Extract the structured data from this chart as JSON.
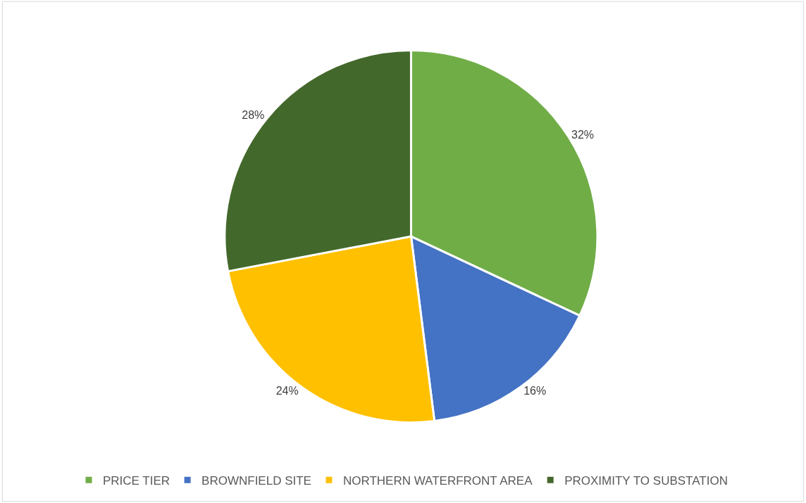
{
  "chart_data": {
    "type": "pie",
    "categories": [
      "PRICE TIER",
      "BROWNFIELD SITE",
      "NORTHERN WATERFRONT AREA",
      "PROXIMITY TO SUBSTATION"
    ],
    "values": [
      32,
      16,
      24,
      28
    ],
    "colors": [
      "#70ad47",
      "#4472c4",
      "#ffc000",
      "#43682b"
    ],
    "value_labels": [
      "32%",
      "16%",
      "24%",
      "28%"
    ],
    "legend": "bottom"
  }
}
